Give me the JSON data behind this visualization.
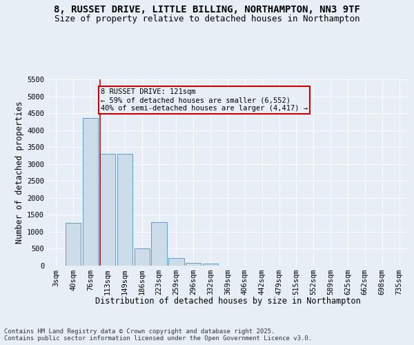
{
  "title_line1": "8, RUSSET DRIVE, LITTLE BILLING, NORTHAMPTON, NN3 9TF",
  "title_line2": "Size of property relative to detached houses in Northampton",
  "xlabel": "Distribution of detached houses by size in Northampton",
  "ylabel": "Number of detached properties",
  "footer_line1": "Contains HM Land Registry data © Crown copyright and database right 2025.",
  "footer_line2": "Contains public sector information licensed under the Open Government Licence v3.0.",
  "annotation_line1": "8 RUSSET DRIVE: 121sqm",
  "annotation_line2": "← 59% of detached houses are smaller (6,552)",
  "annotation_line3": "40% of semi-detached houses are larger (4,417) →",
  "categories": [
    "3sqm",
    "40sqm",
    "76sqm",
    "113sqm",
    "149sqm",
    "186sqm",
    "223sqm",
    "259sqm",
    "296sqm",
    "332sqm",
    "369sqm",
    "406sqm",
    "442sqm",
    "479sqm",
    "515sqm",
    "552sqm",
    "589sqm",
    "625sqm",
    "662sqm",
    "698sqm",
    "735sqm"
  ],
  "values": [
    0,
    1270,
    4350,
    3300,
    3300,
    500,
    1290,
    215,
    80,
    55,
    0,
    0,
    0,
    0,
    0,
    0,
    0,
    0,
    0,
    0,
    0
  ],
  "red_line_bin_idx": 3,
  "bar_color": "#ccdce8",
  "bar_edge_color": "#5b9bd5",
  "red_line_color": "#cc0000",
  "background_color": "#e8eef6",
  "grid_color": "#ffffff",
  "ylim_max": 5500,
  "yticks": [
    0,
    500,
    1000,
    1500,
    2000,
    2500,
    3000,
    3500,
    4000,
    4500,
    5000,
    5500
  ],
  "ann_box_edge_color": "#cc0000",
  "title_fontsize": 10,
  "subtitle_fontsize": 9,
  "axis_label_fontsize": 8.5,
  "tick_fontsize": 7.5,
  "ann_fontsize": 7.5,
  "footer_fontsize": 6.5
}
